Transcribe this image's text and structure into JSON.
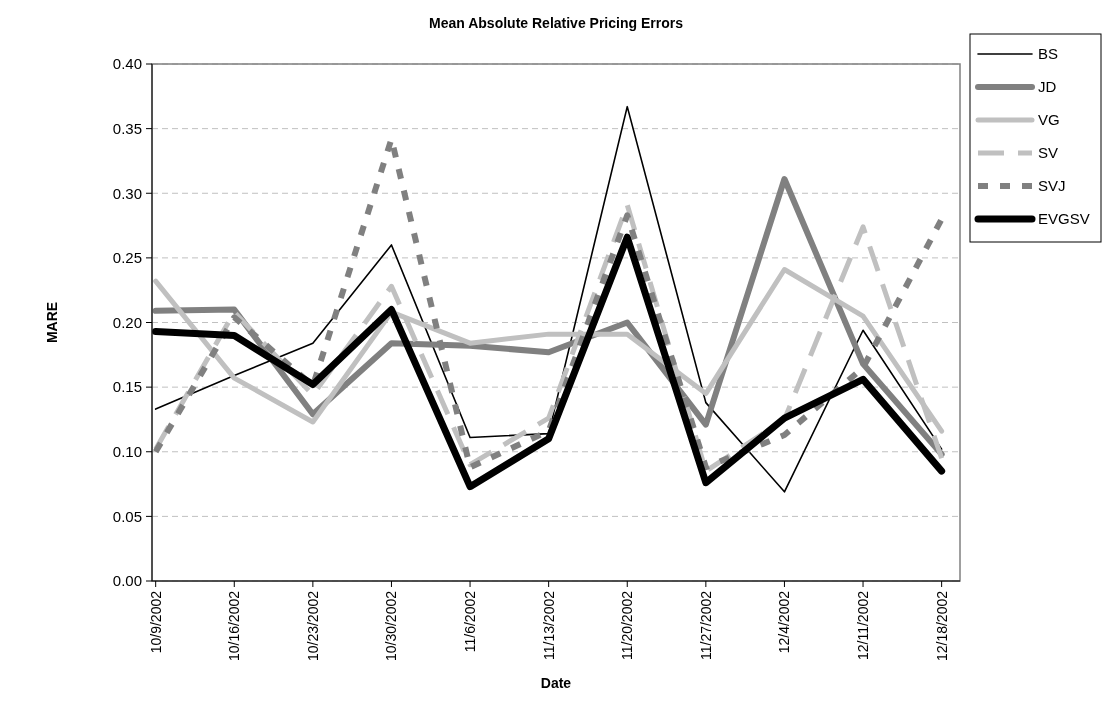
{
  "chart_data": {
    "type": "line",
    "title": "Mean Absolute Relative Pricing Errors",
    "xlabel": "Date",
    "ylabel": "MARE",
    "categories": [
      "10/9/2002",
      "10/16/2002",
      "10/23/2002",
      "10/30/2002",
      "11/6/2002",
      "11/13/2002",
      "11/20/2002",
      "11/27/2002",
      "12/4/2002",
      "12/11/2002",
      "12/18/2002"
    ],
    "series": [
      {
        "name": "BS",
        "color": "#000000",
        "line_style": "solid",
        "values": [
          0.133,
          0.159,
          0.184,
          0.26,
          0.111,
          0.114,
          0.367,
          0.138,
          0.069,
          0.194,
          0.102
        ]
      },
      {
        "name": "JD",
        "color": "#808080",
        "line_style": "solid",
        "values": [
          0.209,
          0.21,
          0.129,
          0.184,
          0.182,
          0.177,
          0.2,
          0.121,
          0.311,
          0.168,
          0.098
        ]
      },
      {
        "name": "VG",
        "color": "#c0c0c0",
        "line_style": "solid",
        "values": [
          0.232,
          0.157,
          0.123,
          0.208,
          0.184,
          0.191,
          0.191,
          0.145,
          0.241,
          0.205,
          0.116
        ]
      },
      {
        "name": "SV",
        "color": "#c0c0c0",
        "line_style": "dashed",
        "values": [
          0.102,
          0.208,
          0.144,
          0.228,
          0.09,
          0.126,
          0.291,
          0.085,
          0.125,
          0.274,
          0.095
        ]
      },
      {
        "name": "SVJ",
        "color": "#808080",
        "line_style": "dotted",
        "values": [
          0.1,
          0.204,
          0.151,
          0.342,
          0.088,
          0.116,
          0.283,
          0.088,
          0.113,
          0.165,
          0.28
        ]
      },
      {
        "name": "EVGSV",
        "color": "#000000",
        "line_style": "solid",
        "values": [
          0.193,
          0.19,
          0.152,
          0.21,
          0.073,
          0.11,
          0.266,
          0.076,
          0.126,
          0.156,
          0.085
        ]
      }
    ],
    "ylim": [
      0,
      0.4
    ],
    "yticks": [
      {
        "value": 0,
        "label": "0.00"
      },
      {
        "value": 0.05,
        "label": "0.05"
      },
      {
        "value": 0.1,
        "label": "0.10"
      },
      {
        "value": 0.15,
        "label": "0.15"
      },
      {
        "value": 0.2,
        "label": "0.20"
      },
      {
        "value": 0.25,
        "label": "0.25"
      },
      {
        "value": 0.3,
        "label": "0.30"
      },
      {
        "value": 0.35,
        "label": "0.35"
      },
      {
        "value": 0.4,
        "label": "0.40"
      }
    ],
    "grid": "y",
    "legend": "right"
  }
}
